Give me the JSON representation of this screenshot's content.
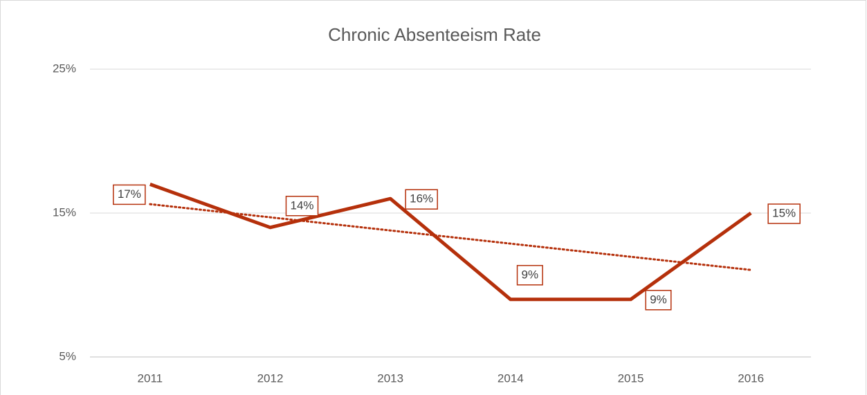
{
  "chart_data": {
    "type": "line",
    "title": "Chronic Absenteeism Rate",
    "categories": [
      "2011",
      "2012",
      "2013",
      "2014",
      "2015",
      "2016"
    ],
    "series": [
      {
        "color": "#b5300b",
        "values": [
          17,
          14,
          16,
          9,
          9,
          15
        ],
        "value_labels": [
          "17%",
          "14%",
          "16%",
          "9%",
          "9%",
          "15%"
        ]
      }
    ],
    "trendline": "linear",
    "ylim": [
      5,
      25
    ],
    "yticks": [
      {
        "value": 5,
        "label": "5%"
      },
      {
        "value": 15,
        "label": "15%"
      },
      {
        "value": 25,
        "label": "25%"
      }
    ],
    "grid": true
  }
}
